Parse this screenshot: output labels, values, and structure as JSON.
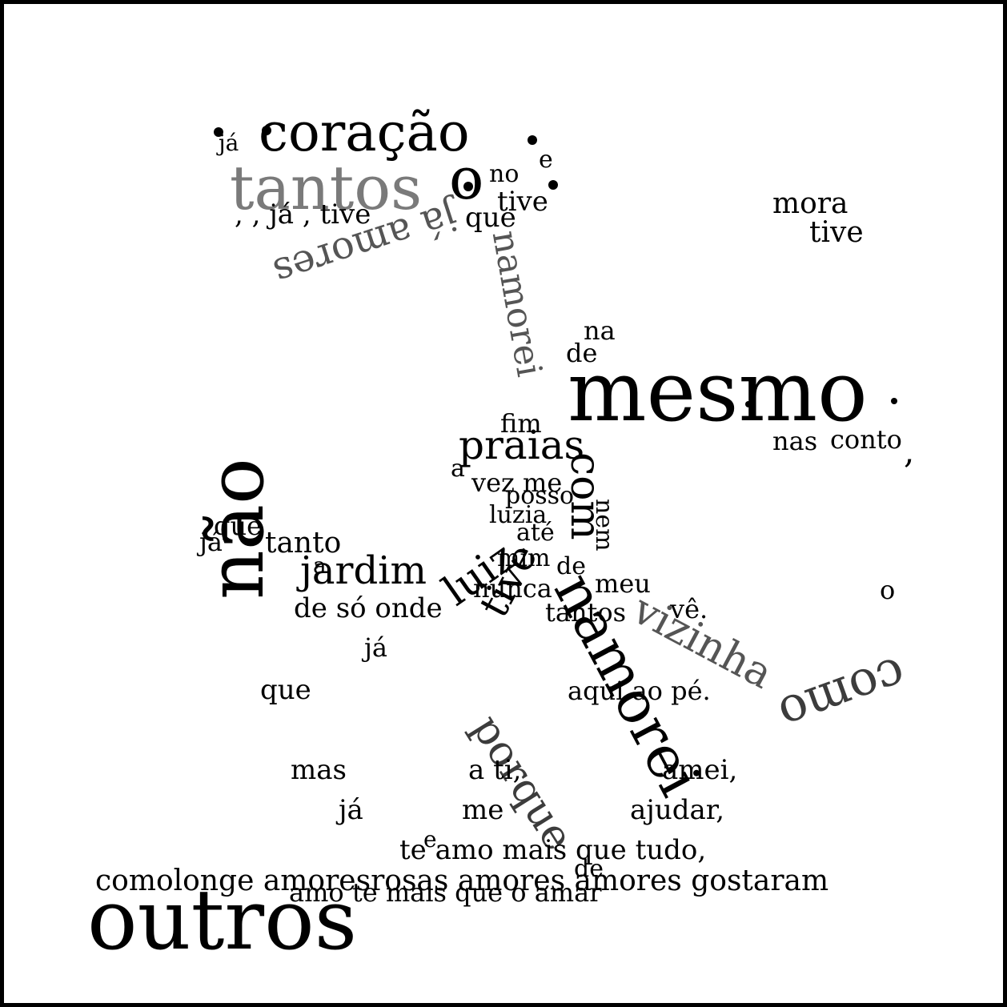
{
  "colors": {
    "ink": "#000000",
    "gray_light": "#7a7a7a",
    "gray_mid": "#555555",
    "gray_dark": "#3c3c3c",
    "background": "#ffffff"
  },
  "words": {
    "coracao": "coração",
    "ja_top": "já",
    "tantos_gray": "tantos",
    "o_big": "o",
    "no": "no",
    "e_top": "e",
    "tive_top": "tive",
    "ja_tive": ", , já , tive",
    "que_top": "que",
    "ja_amores": "já amores",
    "namorei": "namorei",
    "mora": "mora",
    "tive_right": "tive",
    "na": "na",
    "de_top": "de",
    "mesmo": "mesmo",
    "nas": "nas",
    "conto": "conto",
    "comma_right": ",",
    "fim": "fim",
    "praias": "praias",
    "a_mid": "a",
    "vez_me": "vez me",
    "posso": "posso",
    "luzia": "luzia",
    "ate": "até",
    "mim": "mim",
    "de_mid": "de",
    "nunca": "nunca",
    "meu": "meu",
    "tantos_mid": "tantos",
    "ve": "vê.",
    "o_right": "o",
    "nao": "não",
    "que_left": "que",
    "ja_left": "já",
    "tanto": "tanto",
    "a_left": "a",
    "jardim": "jardim",
    "de_so_onde": "de  só  onde",
    "ja_mid": "já",
    "que_mid": "que",
    "luiz": "luiz",
    "tive_diag": "tive",
    "com": "com",
    "nem": "nem",
    "namorei_2": "namorei",
    "vizinha": "vizinha",
    "como": "como",
    "aqui_ao_pe": "aqui  ao  pé.",
    "porque": "porque",
    "mas": "mas",
    "a_ti": "a  ti,",
    "amei": "amei,",
    "ja_low": "já",
    "me": "me",
    "ajudar": "ajudar,",
    "e_low": "e",
    "te_amo": "te  amo  mais  que  tudo,",
    "de_low": "de",
    "bottom_line": "comolonge  amoresrosas  amores amores  gostaram",
    "bottom_line_2": "amo  te   mais  que  o  amar",
    "outros": "outros"
  }
}
